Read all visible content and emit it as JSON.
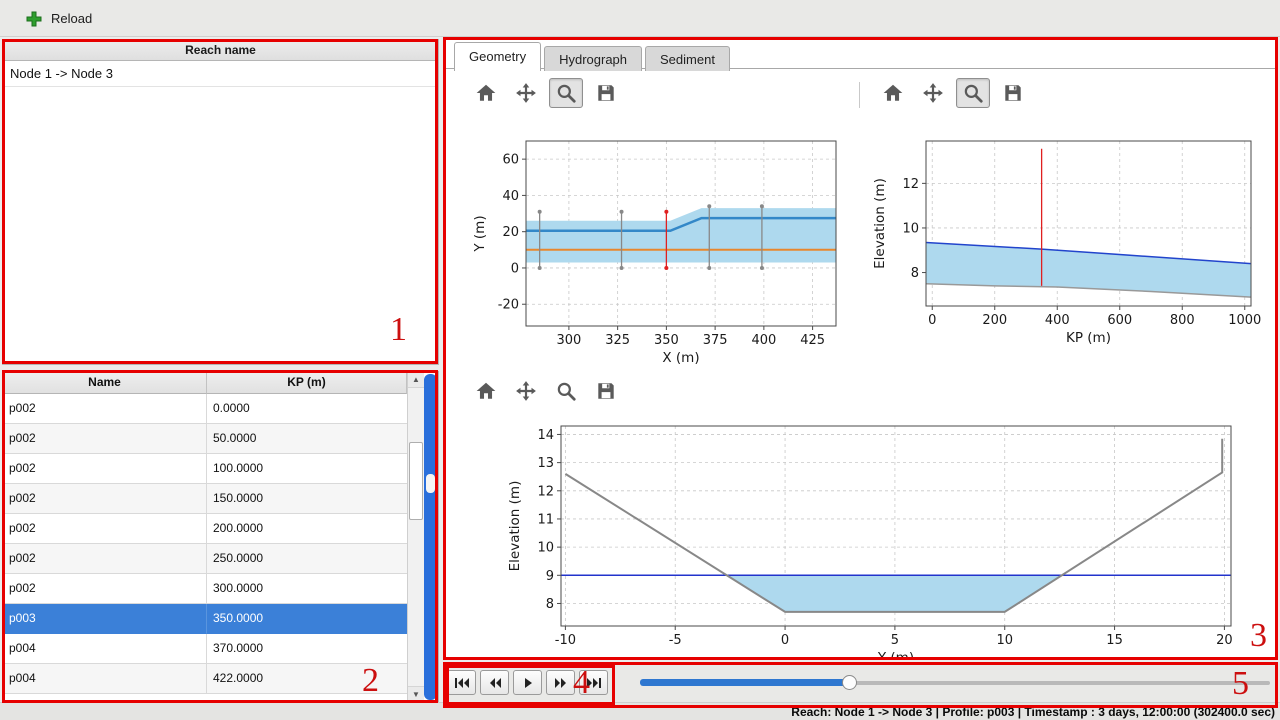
{
  "top_bar": {
    "reload_label": "Reload"
  },
  "reach_panel": {
    "header": "Reach name",
    "items": [
      "Node 1 -> Node 3"
    ]
  },
  "profile_table": {
    "columns": [
      "Name",
      "KP (m)"
    ],
    "rows": [
      [
        "p002",
        "0.0000"
      ],
      [
        "p002",
        "50.0000"
      ],
      [
        "p002",
        "100.0000"
      ],
      [
        "p002",
        "150.0000"
      ],
      [
        "p002",
        "200.0000"
      ],
      [
        "p002",
        "250.0000"
      ],
      [
        "p002",
        "300.0000"
      ],
      [
        "p003",
        "350.0000"
      ],
      [
        "p004",
        "370.0000"
      ],
      [
        "p004",
        "422.0000"
      ]
    ],
    "selected_row": 7
  },
  "tabs": [
    "Geometry",
    "Hydrograph",
    "Sediment"
  ],
  "active_tab": "Geometry",
  "status_bar": {
    "text": "Reach: Node 1 -> Node 3 | Profile: p003 | Timestamp : 3 days, 12:00:00 (302400.0 sec)"
  },
  "annotations": [
    "1",
    "2",
    "3",
    "4",
    "5"
  ],
  "icons": {
    "scroll_up": "▲",
    "scroll_down": "▼"
  },
  "colors": {
    "selection_blue": "#3b80d8",
    "annotation_red": "#e60000",
    "water_fill": "#aed9ee",
    "water_line_blue": "#2244cc",
    "bank_line_blue": "#3388c8",
    "centerline_orange": "#e8872d",
    "bed_gray": "#999999",
    "marker_red": "#e02020",
    "slider_blue": "#2e77d0"
  },
  "chart_data": [
    {
      "id": "plan-view",
      "type": "line",
      "title": "",
      "xlabel": "X (m)",
      "ylabel": "Y (m)",
      "xlim": [
        278,
        437
      ],
      "ylim": [
        -32,
        70
      ],
      "xticks": [
        300,
        325,
        350,
        375,
        400,
        425
      ],
      "yticks": [
        -20,
        0,
        20,
        40,
        60
      ],
      "grid": true,
      "fills": [
        {
          "name": "channel-band",
          "color": "#aed9ee",
          "upper": [
            [
              278,
              26
            ],
            [
              352,
              26
            ],
            [
              368,
              33
            ],
            [
              437,
              33
            ]
          ],
          "lower": [
            [
              278,
              3
            ],
            [
              437,
              3
            ]
          ]
        }
      ],
      "lines": [
        {
          "name": "bank-line",
          "color": "#3388c8",
          "width": 2.5,
          "points": [
            [
              278,
              20.5
            ],
            [
              352,
              20.5
            ],
            [
              368,
              27.5
            ],
            [
              437,
              27.5
            ]
          ]
        },
        {
          "name": "centerline",
          "color": "#e8872d",
          "width": 2,
          "points": [
            [
              278,
              10
            ],
            [
              437,
              10
            ]
          ]
        }
      ],
      "vmarkers": [
        {
          "x": 285,
          "y0": 0,
          "y1": 31,
          "color": "#888888"
        },
        {
          "x": 327,
          "y0": 0,
          "y1": 31,
          "color": "#888888"
        },
        {
          "x": 350,
          "y0": 0,
          "y1": 31,
          "color": "#e02020"
        },
        {
          "x": 372,
          "y0": 0,
          "y1": 34,
          "color": "#888888"
        },
        {
          "x": 399,
          "y0": 0,
          "y1": 34,
          "color": "#888888"
        }
      ]
    },
    {
      "id": "long-profile",
      "type": "line",
      "title": "",
      "xlabel": "KP (m)",
      "ylabel": "Elevation (m)",
      "xlim": [
        -20,
        1020
      ],
      "ylim": [
        6.5,
        13.9
      ],
      "xticks": [
        0,
        200,
        400,
        600,
        800,
        1000
      ],
      "yticks": [
        8,
        10,
        12
      ],
      "grid": true,
      "fills": [
        {
          "name": "water-fill",
          "color": "#aed9ee",
          "upper": [
            [
              -20,
              9.35
            ],
            [
              350,
              9.05
            ],
            [
              1020,
              8.4
            ]
          ],
          "lower": [
            [
              -20,
              7.5
            ],
            [
              200,
              7.4
            ],
            [
              400,
              7.35
            ],
            [
              700,
              7.15
            ],
            [
              1020,
              6.9
            ]
          ]
        }
      ],
      "lines": [
        {
          "name": "water-level",
          "color": "#2244cc",
          "width": 1.5,
          "points": [
            [
              -20,
              9.35
            ],
            [
              350,
              9.05
            ],
            [
              1020,
              8.4
            ]
          ]
        },
        {
          "name": "bed-level",
          "color": "#999999",
          "width": 1.5,
          "points": [
            [
              -20,
              7.5
            ],
            [
              200,
              7.4
            ],
            [
              400,
              7.35
            ],
            [
              700,
              7.15
            ],
            [
              1020,
              6.9
            ]
          ]
        }
      ],
      "vmarkers": [
        {
          "x": 350,
          "y0": 7.4,
          "y1": 13.55,
          "color": "#e02020",
          "caps": false
        }
      ]
    },
    {
      "id": "cross-section",
      "type": "line",
      "title": "",
      "xlabel": "Y (m)",
      "ylabel": "Elevation (m)",
      "xlim": [
        -10.2,
        20.3
      ],
      "ylim": [
        7.2,
        14.3
      ],
      "xticks": [
        -10,
        -5,
        0,
        5,
        10,
        15,
        20
      ],
      "yticks": [
        8,
        9,
        10,
        11,
        12,
        13,
        14
      ],
      "grid": true,
      "fills": [
        {
          "name": "water-fill",
          "color": "#aed9ee",
          "upper": [
            [
              -2.65,
              9
            ],
            [
              12.6,
              9
            ]
          ],
          "lower": [
            [
              -2.65,
              9
            ],
            [
              0,
              7.7
            ],
            [
              10,
              7.7
            ],
            [
              12.6,
              9
            ]
          ]
        }
      ],
      "lines": [
        {
          "name": "water-level",
          "color": "#2233cc",
          "width": 1.5,
          "points": [
            [
              -10.2,
              9
            ],
            [
              20.3,
              9
            ]
          ]
        },
        {
          "name": "ground-line",
          "color": "#888888",
          "width": 2,
          "points": [
            [
              -10,
              12.6
            ],
            [
              0,
              7.7
            ],
            [
              10,
              7.7
            ],
            [
              19.9,
              12.65
            ],
            [
              19.9,
              13.85
            ]
          ]
        }
      ],
      "vmarkers": []
    }
  ]
}
